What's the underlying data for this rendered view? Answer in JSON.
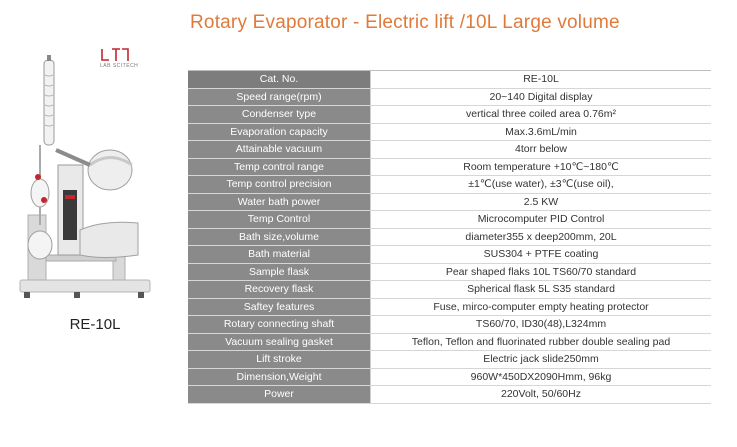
{
  "title": "Rotary Evaporator -  Electric lift /10L Large volume",
  "logo": {
    "text": "LAB SCITECH",
    "accent": "#c1272d"
  },
  "model_label": "RE-10L",
  "spec_rows": [
    {
      "key": "Cat. No.",
      "value": "RE-10L"
    },
    {
      "key": "Speed range(rpm)",
      "value": "20~140 Digital display"
    },
    {
      "key": "Condenser type",
      "value": "vertical three coiled area 0.76m²"
    },
    {
      "key": "Evaporation capacity",
      "value": "Max.3.6mL/min"
    },
    {
      "key": "Attainable vacuum",
      "value": "4torr below"
    },
    {
      "key": "Temp control range",
      "value": "Room temperature +10℃~180℃"
    },
    {
      "key": "Temp control precision",
      "value": "±1℃(use water), ±3℃(use oil),"
    },
    {
      "key": "Water bath power",
      "value": "2.5 KW"
    },
    {
      "key": "Temp Control",
      "value": "Microcomputer PID Control"
    },
    {
      "key": "Bath size,volume",
      "value": "diameter355 x deep200mm, 20L"
    },
    {
      "key": "Bath material",
      "value": "SUS304 + PTFE coating"
    },
    {
      "key": "Sample flask",
      "value": "Pear shaped flaks  10L TS60/70 standard"
    },
    {
      "key": "Recovery flask",
      "value": "Spherical flask 5L S35 standard"
    },
    {
      "key": "Saftey features",
      "value": "Fuse, mirco-computer empty heating protector"
    },
    {
      "key": "Rotary connecting shaft",
      "value": "TS60/70, ID30(48),L324mm"
    },
    {
      "key": "Vacuum sealing gasket",
      "value": "Teflon, Teflon and fluorinated rubber double sealing pad"
    },
    {
      "key": "Lift stroke",
      "value": "Electric jack slide250mm"
    },
    {
      "key": "Dimension,Weight",
      "value": "960W*450DX2090Hmm, 96kg"
    },
    {
      "key": "Power",
      "value": "220Volt, 50/60Hz"
    }
  ]
}
